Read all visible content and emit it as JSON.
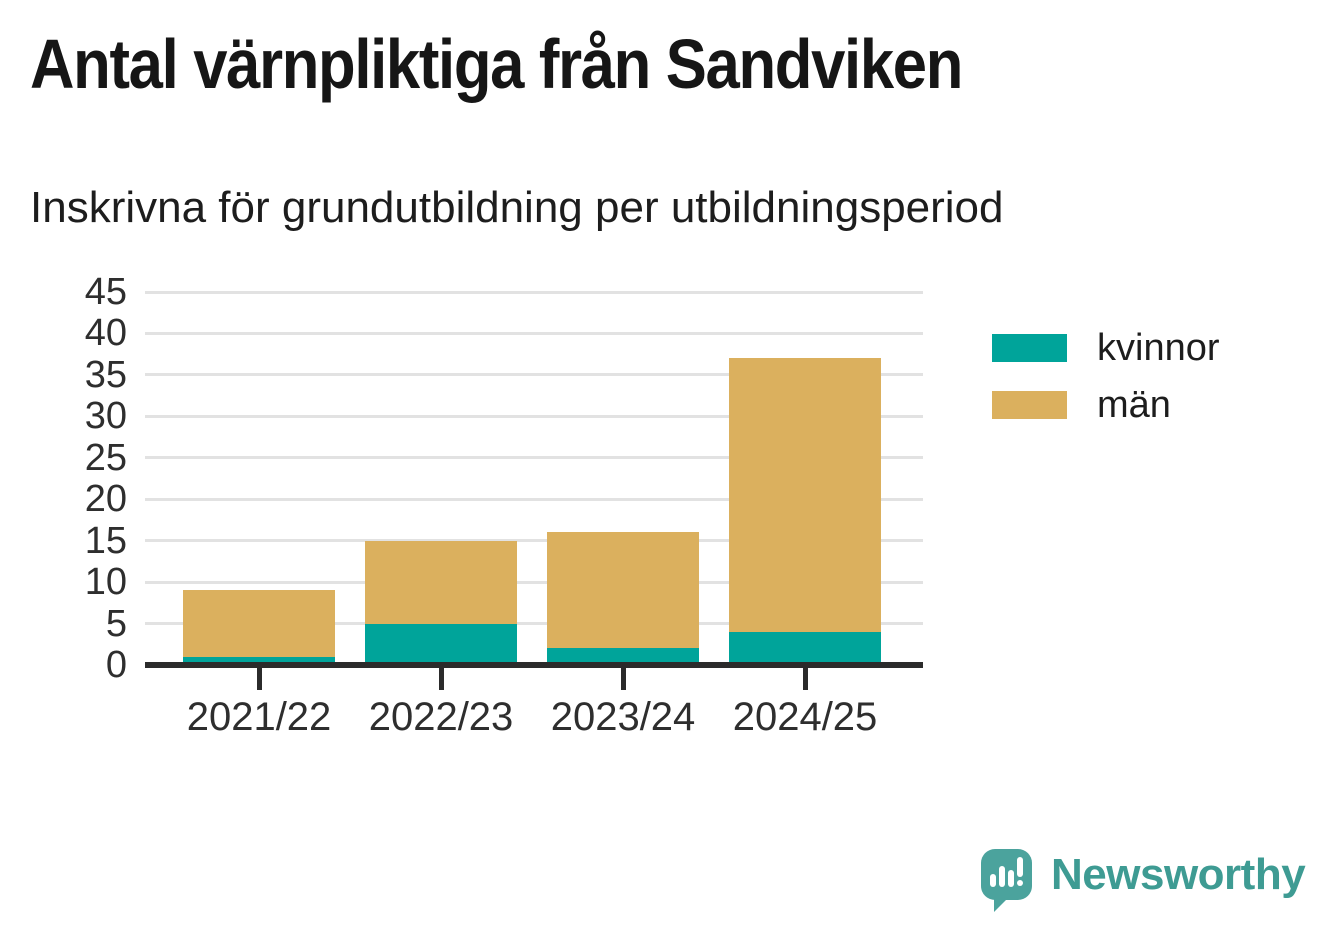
{
  "page": {
    "title": "Antal värnpliktiga från Sandviken",
    "subtitle": "Inskrivna för grundutbildning per utbildningsperiod"
  },
  "chart_data": {
    "type": "bar",
    "stacked": true,
    "title": "Antal värnpliktiga från Sandviken",
    "subtitle": "Inskrivna för grundutbildning per utbildningsperiod",
    "categories": [
      "2021/22",
      "2022/23",
      "2023/24",
      "2024/25"
    ],
    "series": [
      {
        "name": "kvinnor",
        "color": "#00a49a",
        "values": [
          1,
          5,
          2,
          4
        ]
      },
      {
        "name": "män",
        "color": "#dbb05e",
        "values": [
          8,
          10,
          14,
          33
        ]
      }
    ],
    "totals": [
      9,
      15,
      16,
      37
    ],
    "xlabel": "",
    "ylabel": "",
    "ylim": [
      0,
      45
    ],
    "ytick_step": 5,
    "yticks": [
      0,
      5,
      10,
      15,
      20,
      25,
      30,
      35,
      40,
      45
    ],
    "grid": "horizontal",
    "legend_position": "right"
  },
  "branding": {
    "logo_text": "Newsworthy",
    "logo_text_color": "#3e9b93",
    "logo_icon": "speech-bubble-bar-chart-exclamation-icon",
    "logo_icon_color": "#4ba39d"
  },
  "colors": {
    "background": "#ffffff",
    "axis": "#2b2b2b",
    "gridline": "#e2e2e2",
    "label_text": "#2e2e2e",
    "title_text": "#161616"
  }
}
